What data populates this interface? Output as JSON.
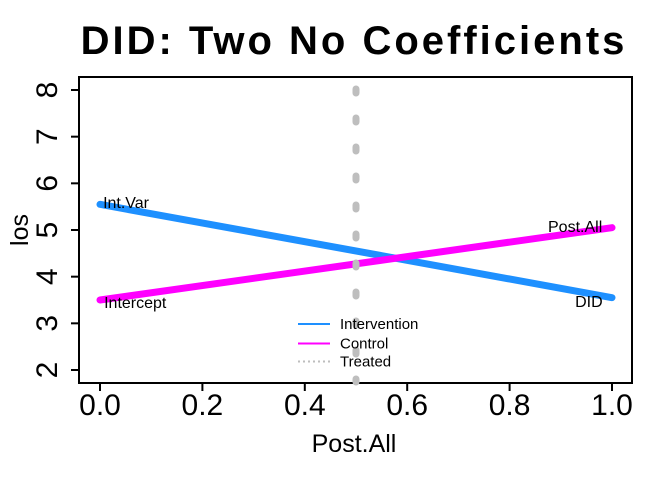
{
  "title": "DID: Two No Coefficients",
  "chart_data": {
    "type": "line",
    "title": "DID: Two No Coefficients",
    "xlabel": "Post.All",
    "ylabel": "los",
    "xlim": [
      0,
      1
    ],
    "ylim": [
      2,
      8
    ],
    "grid": false,
    "x_ticks": [
      0,
      0.2,
      0.4,
      0.6,
      0.8,
      1
    ],
    "x_tick_labels": [
      "0.0",
      "0.2",
      "0.4",
      "0.6",
      "0.8",
      "1.0"
    ],
    "y_ticks": [
      2,
      3,
      4,
      5,
      6,
      7,
      8
    ],
    "y_tick_labels": [
      "2",
      "3",
      "4",
      "5",
      "6",
      "7",
      "8"
    ],
    "series": [
      {
        "name": "Intervention",
        "color": "#1E90FF",
        "style": "solid",
        "width": 7,
        "x": [
          0,
          1
        ],
        "y": [
          5.55,
          3.55
        ]
      },
      {
        "name": "Control",
        "color": "#FF00FF",
        "style": "solid",
        "width": 7,
        "x": [
          0,
          1
        ],
        "y": [
          3.5,
          5.05
        ]
      }
    ],
    "vline": {
      "name": "Treated",
      "x": 0.5,
      "color": "#BEBEBE",
      "style": "dotted",
      "width": 7
    },
    "annotations": [
      {
        "text": "Int.Var",
        "x": 0.006,
        "y": 5.47
      },
      {
        "text": "Intercept",
        "x": 0.008,
        "y": 3.33
      },
      {
        "text": "Post.All",
        "x": 0.875,
        "y": 4.96
      },
      {
        "text": "DID",
        "x": 0.928,
        "y": 3.35
      }
    ],
    "legend": {
      "position": "bottom-center",
      "entries": [
        {
          "label": "Intervention",
          "color": "#1E90FF",
          "style": "solid"
        },
        {
          "label": "Control",
          "color": "#FF00FF",
          "style": "solid"
        },
        {
          "label": "Treated",
          "color": "#BEBEBE",
          "style": "dotted"
        }
      ]
    },
    "colors": {
      "axis": "#000000",
      "background": "#FFFFFF"
    }
  }
}
